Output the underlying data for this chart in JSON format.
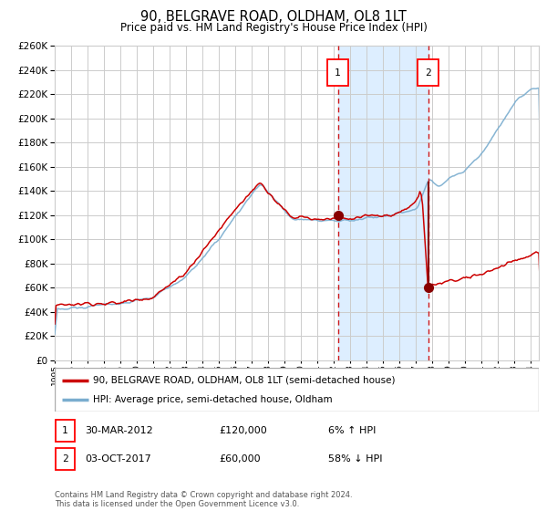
{
  "title": "90, BELGRAVE ROAD, OLDHAM, OL8 1LT",
  "subtitle": "Price paid vs. HM Land Registry's House Price Index (HPI)",
  "legend_line1": "90, BELGRAVE ROAD, OLDHAM, OL8 1LT (semi-detached house)",
  "legend_line2": "HPI: Average price, semi-detached house, Oldham",
  "footnote": "Contains HM Land Registry data © Crown copyright and database right 2024.\nThis data is licensed under the Open Government Licence v3.0.",
  "hpi_color": "#7aadcf",
  "price_color": "#cc0000",
  "marker_color": "#880000",
  "grid_color": "#cccccc",
  "highlight_color": "#ddeeff",
  "marker1_date": 2012.25,
  "marker1_price": 120000,
  "marker1_hpi_price": 113000,
  "marker2_date": 2017.75,
  "marker2_price": 60000,
  "marker2_hpi_price": 148000,
  "marker1_text": "30-MAR-2012",
  "marker1_amount": "£120,000",
  "marker1_hpi": "6% ↑ HPI",
  "marker2_text": "03-OCT-2017",
  "marker2_amount": "£60,000",
  "marker2_hpi": "58% ↓ HPI",
  "xmin": 1995,
  "xmax": 2024.5,
  "ymin": 0,
  "ymax": 260000,
  "yticks": [
    0,
    20000,
    40000,
    60000,
    80000,
    100000,
    120000,
    140000,
    160000,
    180000,
    200000,
    220000,
    240000,
    260000
  ]
}
